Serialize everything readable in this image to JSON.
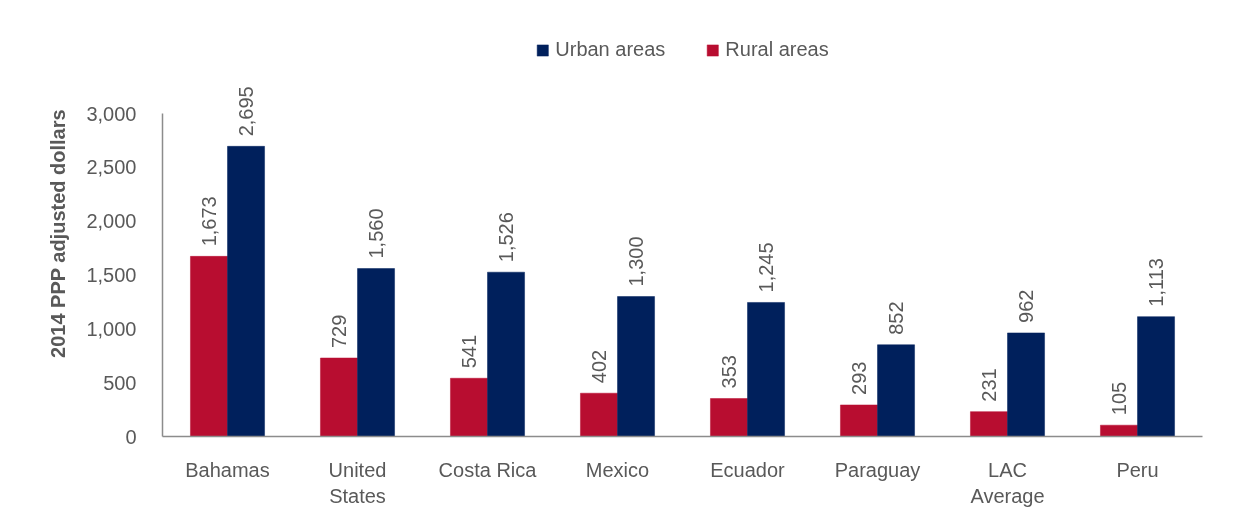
{
  "chart_data": {
    "type": "bar",
    "ylabel": "2014 PPP adjusted dollars",
    "categories": [
      "Bahamas",
      "United States",
      "Costa Rica",
      "Mexico",
      "Ecuador",
      "Paraguay",
      "LAC Average",
      "Peru"
    ],
    "series": [
      {
        "name": "Rural areas",
        "color": "#b80d30",
        "values": [
          1673,
          729,
          541,
          402,
          353,
          293,
          231,
          105
        ],
        "value_labels": [
          "1,673",
          "729",
          "541",
          "402",
          "353",
          "293",
          "231",
          "105"
        ]
      },
      {
        "name": "Urban areas",
        "color": "#00205c",
        "values": [
          2695,
          1560,
          1526,
          1300,
          1245,
          852,
          962,
          1113
        ],
        "value_labels": [
          "2,695",
          "1,560",
          "1,526",
          "1,300",
          "1,245",
          "852",
          "962",
          "1,113"
        ]
      }
    ],
    "ylim": [
      0,
      3000
    ],
    "yticks": [
      0,
      500,
      {
        "value": 1000,
        "label": "1,000"
      },
      {
        "value": 1500,
        "label": "1,500"
      },
      {
        "value": 2000,
        "label": "2,000"
      },
      {
        "value": 2500,
        "label": "2,500"
      },
      {
        "value": 3000,
        "label": "3,000"
      }
    ],
    "legend": "top"
  }
}
